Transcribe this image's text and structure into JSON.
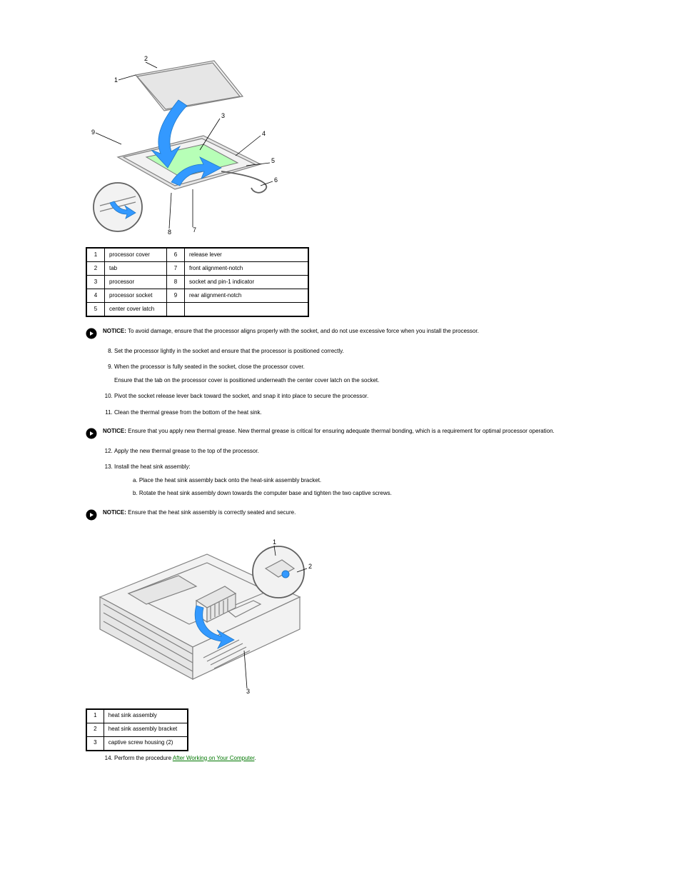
{
  "figure1": {
    "callouts": {
      "1": "1",
      "2": "2",
      "3": "3",
      "4": "4",
      "5": "5",
      "6": "6",
      "7": "7",
      "8": "8",
      "9": "9"
    }
  },
  "table1": {
    "rows": [
      [
        "1",
        "processor cover",
        "6",
        "release lever"
      ],
      [
        "2",
        "tab",
        "7",
        "front alignment-notch"
      ],
      [
        "3",
        "processor",
        "8",
        "socket and pin-1 indicator"
      ],
      [
        "4",
        "processor socket",
        "9",
        "rear alignment-notch"
      ],
      [
        "5",
        "center cover latch",
        "",
        ""
      ]
    ]
  },
  "notice1": {
    "label": "NOTICE:",
    "text": " To avoid damage, ensure that the processor aligns properly with the socket, and do not use excessive force when you install the processor."
  },
  "steps_a": [
    "Set the processor lightly in the socket and ensure that the processor is positioned correctly.",
    "When the processor is fully seated in the socket, close the processor cover.",
    "Pivot the socket release lever back toward the socket, and snap it into place to secure the processor.",
    "Clean the thermal grease from the bottom of the heat sink."
  ],
  "steps_a_start": 8,
  "substep_8": "Ensure that the tab on the processor cover is positioned underneath the center cover latch on the socket.",
  "notice2": {
    "label": "NOTICE:",
    "text": " Ensure that you apply new thermal grease. New thermal grease is critical for ensuring adequate thermal bonding, which is a requirement for optimal processor operation."
  },
  "steps_b": [
    "Apply the new thermal grease to the top of the processor.",
    "Install the heat sink assembly:"
  ],
  "steps_b_start": 12,
  "sub_b": [
    "a.  Place the heat sink assembly back onto the heat-sink assembly bracket.",
    "b.  Rotate the heat sink assembly down towards the computer base and tighten the two captive screws."
  ],
  "notice3": {
    "label": "NOTICE:",
    "text": " Ensure that the heat sink assembly is correctly seated and secure."
  },
  "figure2": {
    "callouts": {
      "1": "1",
      "2": "2",
      "3": "3"
    }
  },
  "table2": {
    "rows": [
      [
        "1",
        "heat sink assembly"
      ],
      [
        "2",
        "heat sink assembly bracket"
      ],
      [
        "3",
        "captive screw housing (2)"
      ]
    ]
  },
  "steps_c": [
    {
      "text_before": "Perform the procedure ",
      "link": "After Working on Your Computer",
      "text_after": "."
    }
  ],
  "steps_c_start": 14,
  "colors": {
    "link": "#007700",
    "accent_blue": "#3399ff"
  }
}
